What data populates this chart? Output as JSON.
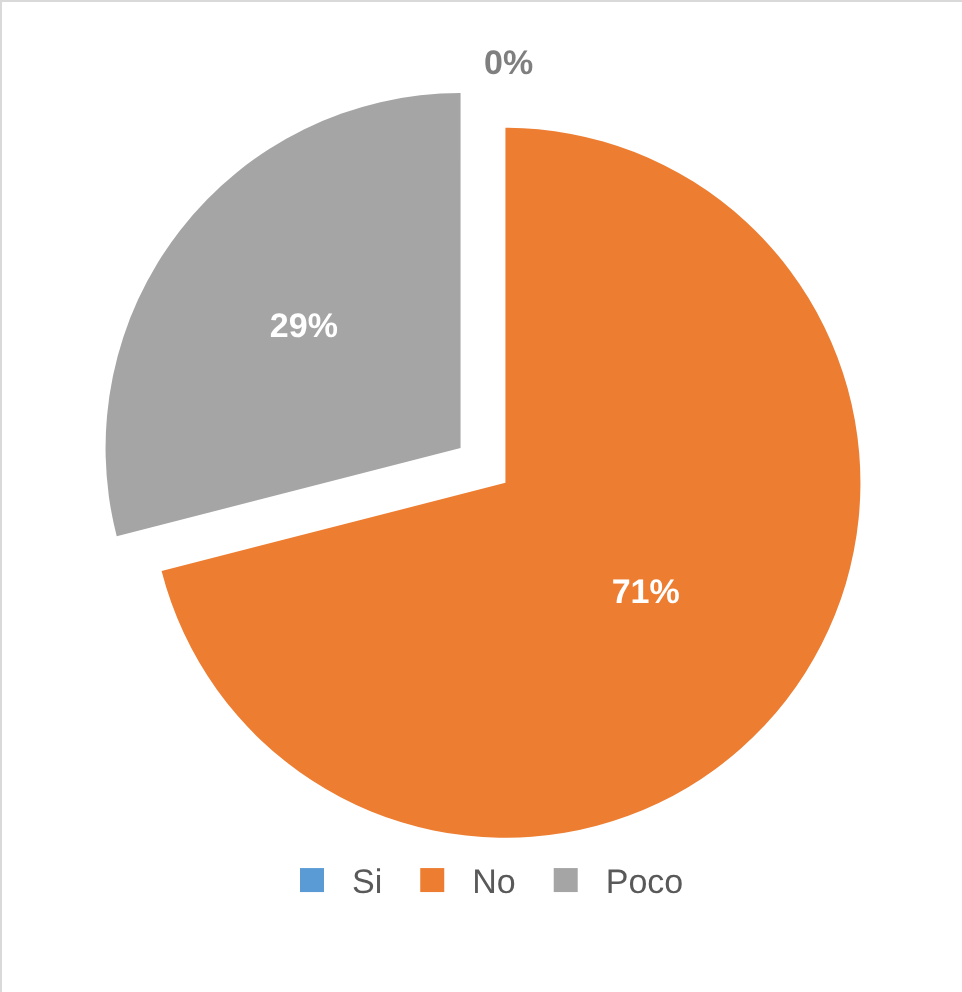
{
  "chart_data": {
    "type": "pie",
    "categories": [
      "Si",
      "No",
      "Poco"
    ],
    "values": [
      0,
      71,
      29
    ],
    "colors": [
      "#5b9bd5",
      "#ed7d31",
      "#a5a5a5"
    ],
    "value_labels": [
      "0%",
      "71%",
      "29%"
    ],
    "legend": "bottom"
  }
}
